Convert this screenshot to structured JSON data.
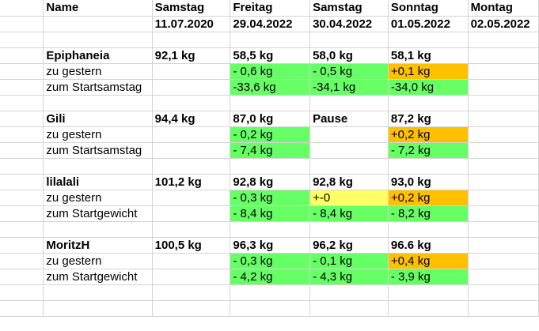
{
  "header": {
    "name_label": "Name",
    "days": [
      "Samstag",
      "Freitag",
      "Samstag",
      "Sonntag",
      "Montag"
    ],
    "dates": [
      "11.07.2020",
      "29.04.2022",
      "30.04.2022",
      "01.05.2022",
      "02.05.2022"
    ]
  },
  "people": [
    {
      "name": "Epiphaneia",
      "weights": [
        "92,1 kg",
        "58,5 kg",
        "58,0 kg",
        "58,1 kg",
        ""
      ],
      "row2_label": "zu gestern",
      "row2": [
        "",
        "- 0,6 kg",
        "- 0,5 kg",
        "+0,1 kg",
        ""
      ],
      "row3_label": "zum Startsamstag",
      "row3": [
        "",
        "-33,6 kg",
        "-34,1 kg",
        "-34,0 kg",
        ""
      ]
    },
    {
      "name": "Gili",
      "weights": [
        "94,4 kg",
        "87,0 kg",
        "Pause",
        "87,2 kg",
        ""
      ],
      "row2_label": "zu gestern",
      "row2": [
        "",
        "- 0,2 kg",
        "",
        "+0,2 kg",
        ""
      ],
      "row3_label": "zum Startsamstag",
      "row3": [
        "",
        "- 7,4 kg",
        "",
        "- 7,2 kg",
        ""
      ]
    },
    {
      "name": "lilalali",
      "weights": [
        "101,2 kg",
        "92,8 kg",
        "92,8 kg",
        "93,0 kg",
        ""
      ],
      "row2_label": "zu gestern",
      "row2": [
        "",
        "- 0,3 kg",
        "+-0",
        "+0,2 kg",
        ""
      ],
      "row3_label": "zum Startgewicht",
      "row3": [
        "",
        "- 8,4 kg",
        "- 8,4 kg",
        "- 8,2 kg",
        ""
      ]
    },
    {
      "name": "MoritzH",
      "weights": [
        "100,5 kg",
        "96,3 kg",
        "96,2 kg",
        "96.6 kg",
        ""
      ],
      "row2_label": "zu gestern",
      "row2": [
        "",
        "- 0,3 kg",
        "- 0,1 kg",
        "+0,4 kg",
        ""
      ],
      "row3_label": "zum Startgewicht",
      "row3": [
        "",
        "- 4,2 kg",
        "- 4,3 kg",
        "- 3,9 kg",
        ""
      ]
    }
  ],
  "colors": {
    "green": "#66ff66",
    "orange": "#ffc000",
    "yellow": "#ffff66"
  }
}
